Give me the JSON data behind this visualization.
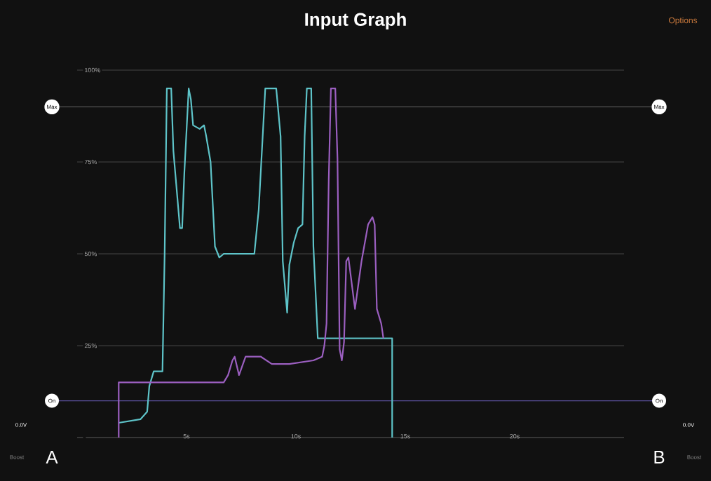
{
  "chart_data": {
    "type": "line",
    "title": "Input Graph",
    "xlim": [
      0,
      25
    ],
    "ylim": [
      0,
      100
    ],
    "xticks": [
      {
        "value": 5,
        "label": "5s"
      },
      {
        "value": 10,
        "label": "10s"
      },
      {
        "value": 15,
        "label": "15s"
      },
      {
        "value": 20,
        "label": "20s"
      }
    ],
    "yticks": [
      {
        "value": 0,
        "label": null
      },
      {
        "value": 25,
        "label": "25%"
      },
      {
        "value": 50,
        "label": "50%"
      },
      {
        "value": 75,
        "label": "75%"
      },
      {
        "value": 100,
        "label": "100%"
      }
    ],
    "grid": "y",
    "marker": "none",
    "line_style": "solid",
    "series": [
      {
        "color": "#5ec4c9",
        "x": [
          1.9,
          2.9,
          3.2,
          3.3,
          3.5,
          3.9,
          4.0,
          4.1,
          4.3,
          4.4,
          4.7,
          4.8,
          4.9,
          5.1,
          5.2,
          5.3,
          5.6,
          5.8,
          5.9,
          6.1,
          6.3,
          6.5,
          6.7,
          7.9,
          8.1,
          8.3,
          8.6,
          9.1,
          9.3,
          9.4,
          9.6,
          9.7,
          9.9,
          10.1,
          10.3,
          10.4,
          10.5,
          10.7,
          10.8,
          11.0,
          14.4,
          14.4
        ],
        "values": [
          4,
          5,
          7,
          14,
          18,
          18,
          50,
          95,
          95,
          78,
          57,
          57,
          72,
          95,
          92,
          85,
          84,
          85,
          82,
          75,
          52,
          49,
          50,
          50,
          50,
          62,
          95,
          95,
          82,
          48,
          34,
          47,
          53,
          57,
          58,
          82,
          95,
          95,
          52,
          27,
          27,
          0
        ]
      },
      {
        "color": "#9b5fc0",
        "x": [
          1.9,
          1.9,
          6.7,
          6.9,
          7.1,
          7.2,
          7.4,
          7.7,
          8.4,
          8.9,
          9.7,
          10.8,
          11.2,
          11.3,
          11.4,
          11.5,
          11.6,
          11.8,
          11.9,
          12.0,
          12.1,
          12.2,
          12.3,
          12.4,
          12.7,
          13.0,
          13.3,
          13.5,
          13.6,
          13.7,
          13.9,
          14.0
        ],
        "values": [
          0,
          15,
          15,
          17,
          21,
          22,
          17,
          22,
          22,
          20,
          20,
          21,
          22,
          25,
          31,
          70,
          95,
          95,
          76,
          24,
          21,
          26,
          48,
          49,
          35,
          48,
          58,
          60,
          58,
          35,
          31,
          27
        ]
      }
    ],
    "ref_lines": [
      {
        "axis": "y",
        "value": 90,
        "label": "Max",
        "color": "#555555"
      },
      {
        "axis": "y",
        "value": 10,
        "label": "On",
        "color": "#5a4f9a"
      }
    ],
    "annotations": [
      "Options",
      "Boost",
      "A",
      "0.0V",
      "B",
      "Boost",
      "0.0V"
    ]
  }
}
